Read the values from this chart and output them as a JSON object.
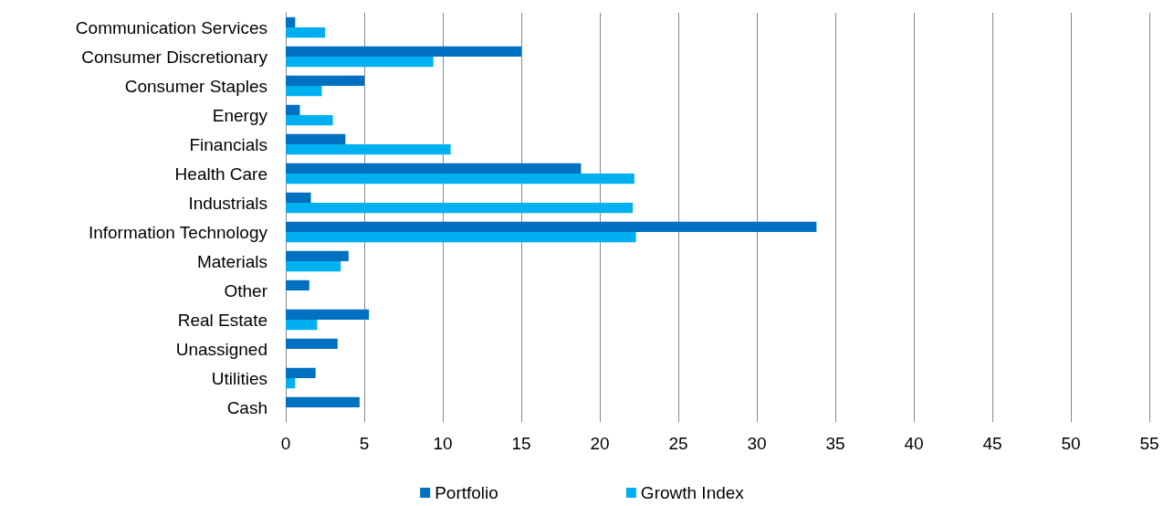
{
  "chart_data": {
    "type": "bar",
    "orientation": "horizontal",
    "categories": [
      "Communication Services",
      "Consumer Discretionary",
      "Consumer Staples",
      "Energy",
      "Financials",
      "Health Care",
      "Industrials",
      "Information Technology",
      "Materials",
      "Other",
      "Real Estate",
      "Unassigned",
      "Utilities",
      "Cash"
    ],
    "series": [
      {
        "name": "Portfolio",
        "color": "#0070c0",
        "values": [
          0.6,
          15.0,
          5.0,
          0.9,
          3.8,
          18.8,
          1.6,
          33.8,
          4.0,
          1.5,
          5.3,
          3.3,
          1.9,
          4.7
        ]
      },
      {
        "name": "Growth Index",
        "color": "#00b0f0",
        "values": [
          2.5,
          9.4,
          2.3,
          3.0,
          10.5,
          22.2,
          22.1,
          22.3,
          3.5,
          null,
          2.0,
          null,
          0.6,
          null
        ]
      }
    ],
    "xlim": [
      0,
      55
    ],
    "xticks": [
      0,
      5,
      10,
      15,
      20,
      25,
      30,
      35,
      40,
      45,
      50,
      55
    ],
    "grid": "x",
    "legend": "bottom"
  }
}
